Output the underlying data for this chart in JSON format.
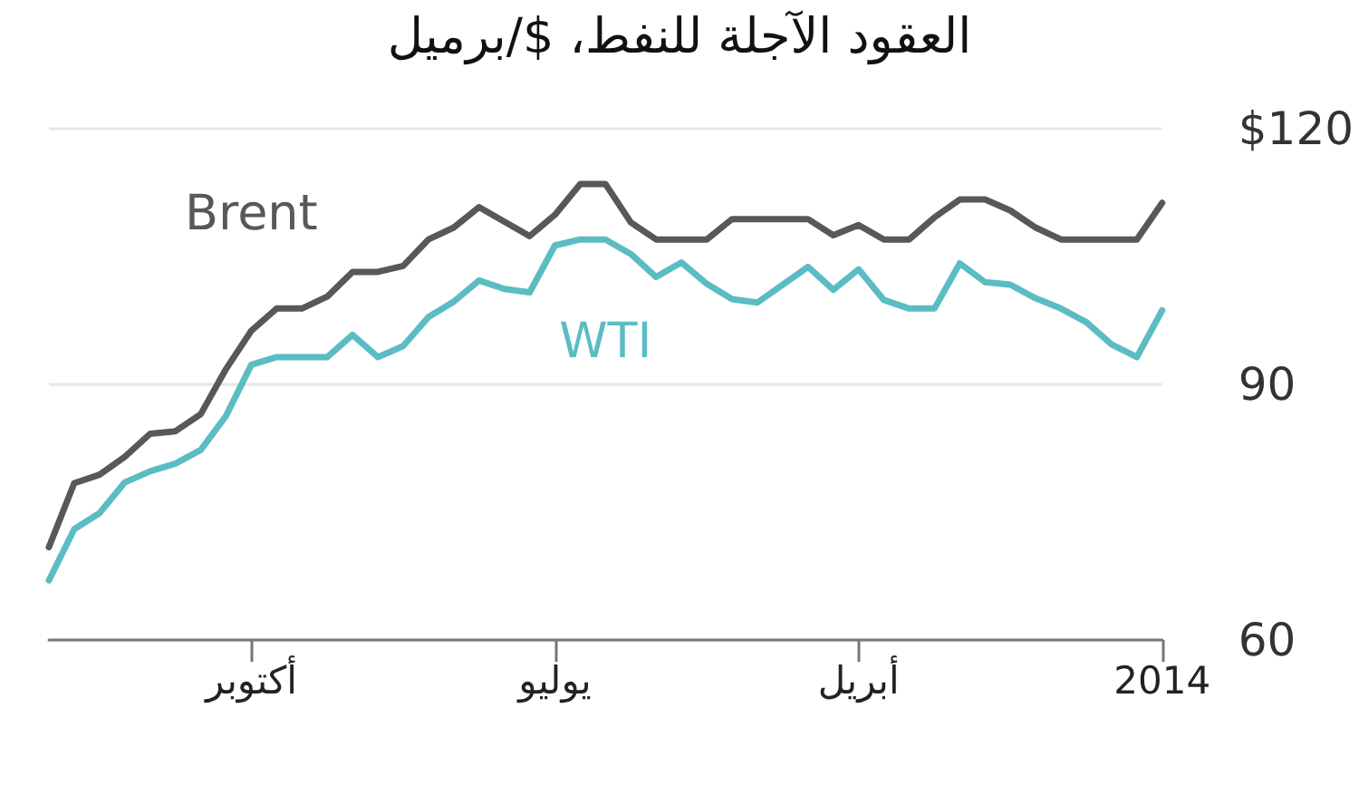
{
  "chart_data": {
    "type": "line",
    "title": "العقود الآجلة للنفط، $/برميل",
    "categories": [
      null,
      null,
      null,
      null,
      null,
      null,
      null,
      null,
      "أكتوبر",
      null,
      null,
      null,
      null,
      null,
      null,
      null,
      null,
      null,
      null,
      null,
      "يوليو",
      null,
      null,
      null,
      null,
      null,
      null,
      null,
      null,
      null,
      null,
      null,
      "أبريل",
      null,
      null,
      null,
      null,
      null,
      null,
      null,
      null,
      null,
      null,
      null,
      "2014"
    ],
    "series": [
      {
        "name": "Brent",
        "color": "#55595b",
        "values": [
          70.9,
          78.4,
          79.4,
          81.5,
          84.2,
          84.5,
          86.5,
          91.8,
          96.3,
          98.9,
          98.9,
          100.3,
          103.2,
          103.2,
          103.9,
          107,
          108.4,
          110.8,
          109.1,
          107.4,
          109.9,
          113.5,
          113.5,
          109,
          107,
          107,
          107,
          109.4,
          109.4,
          109.4,
          109.4,
          107.5,
          108.7,
          107,
          107,
          109.6,
          111.7,
          111.7,
          110.4,
          108.4,
          107,
          107,
          107,
          107,
          111.3
        ]
      },
      {
        "name": "WTI",
        "color": "#5bbcc4",
        "values": [
          67,
          73,
          74.9,
          78.5,
          79.8,
          80.7,
          82.3,
          86.3,
          92.3,
          93.2,
          93.2,
          93.2,
          95.8,
          93.2,
          94.5,
          97.9,
          99.7,
          102.2,
          101.2,
          100.8,
          106.3,
          107,
          107,
          105.3,
          102.6,
          104.3,
          101.8,
          100,
          99.6,
          101.7,
          103.8,
          101.1,
          103.5,
          99.9,
          98.9,
          98.9,
          104.2,
          102,
          101.7,
          100.1,
          98.9,
          97.3,
          94.7,
          93.2,
          98.7
        ]
      }
    ],
    "ylim": [
      60,
      120
    ],
    "yticks": [
      {
        "value": 120,
        "label": "$120"
      },
      90,
      60
    ],
    "grid": "y",
    "legend": false,
    "marker": "none",
    "line_style": "solid"
  }
}
